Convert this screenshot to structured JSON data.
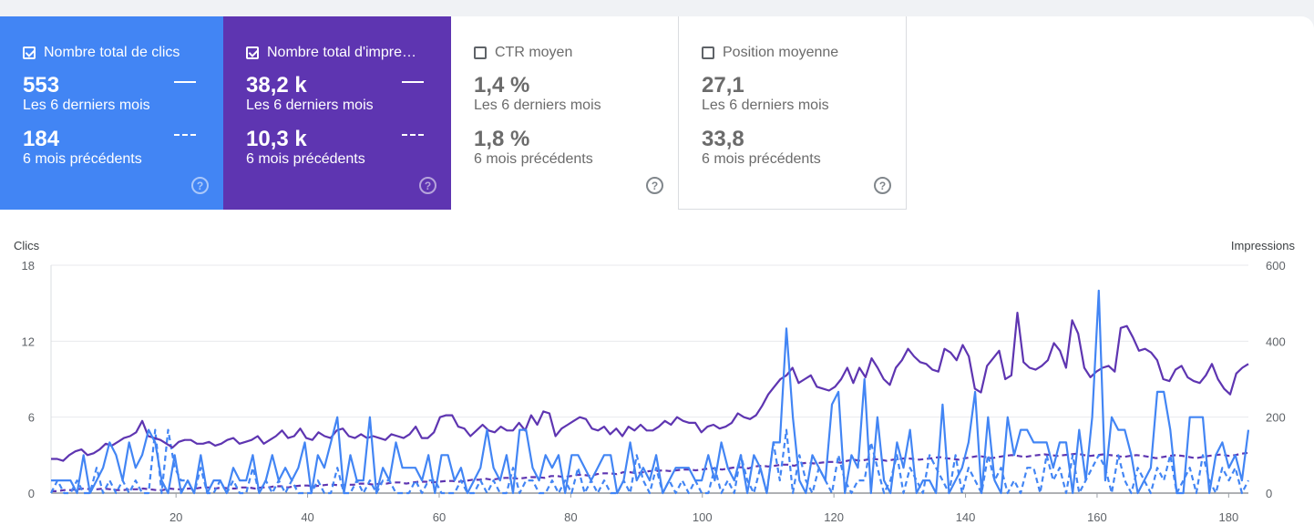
{
  "cards": [
    {
      "label": "Nombre total de clics",
      "checked": true,
      "current_value": "553",
      "current_label": "Les 6 derniers mois",
      "previous_value": "184",
      "previous_label": "6 mois précédents",
      "help_icon": "help-circle-icon"
    },
    {
      "label": "Nombre total d'impre…",
      "checked": true,
      "current_value": "38,2 k",
      "current_label": "Les 6 derniers mois",
      "previous_value": "10,3 k",
      "previous_label": "6 mois précédents",
      "help_icon": "help-circle-icon"
    },
    {
      "label": "CTR moyen",
      "checked": false,
      "current_value": "1,4 %",
      "current_label": "Les 6 derniers mois",
      "previous_value": "1,8 %",
      "previous_label": "6 mois précédents",
      "help_icon": "help-circle-icon"
    },
    {
      "label": "Position moyenne",
      "checked": false,
      "current_value": "27,1",
      "current_label": "Les 6 derniers mois",
      "previous_value": "33,8",
      "previous_label": "6 mois précédents",
      "help_icon": "help-circle-icon"
    }
  ],
  "colors": {
    "clicks": "#4285f4",
    "impressions": "#5e35b1",
    "grid": "#e8eaed"
  },
  "chart_data": {
    "type": "line",
    "ylabel_left": "Clics",
    "ylabel_right": "Impressions",
    "ylim_left": [
      0,
      18
    ],
    "ylim_right": [
      0,
      600
    ],
    "yticks_left": [
      0,
      6,
      12,
      18
    ],
    "yticks_right": [
      0,
      200,
      400,
      600
    ],
    "xlim": [
      1,
      183
    ],
    "xticks": [
      20,
      40,
      60,
      80,
      100,
      120,
      140,
      160,
      180
    ],
    "grid": true,
    "series": [
      {
        "name": "Nombre total de clics",
        "axis": "left",
        "style": "solid",
        "values": [
          1,
          1,
          1,
          1,
          0,
          3,
          0,
          1,
          2,
          4,
          3,
          1,
          4,
          2,
          3,
          5,
          4,
          1,
          0,
          3,
          0,
          1,
          0,
          3,
          0,
          1,
          1,
          0,
          2,
          1,
          1,
          3,
          0,
          1,
          3,
          1,
          2,
          1,
          2,
          4,
          0,
          3,
          2,
          4,
          6,
          0,
          3,
          1,
          1,
          6,
          0,
          2,
          1,
          4,
          2,
          2,
          2,
          1,
          3,
          0,
          3,
          3,
          1,
          2,
          0,
          1,
          2,
          5,
          2,
          1,
          3,
          0,
          5,
          5,
          2,
          1,
          3,
          2,
          3,
          0,
          3,
          3,
          2,
          1,
          2,
          3,
          3,
          0,
          1,
          4,
          1,
          2,
          1,
          3,
          0,
          1,
          2,
          2,
          2,
          1,
          1,
          3,
          1,
          4,
          2,
          1,
          3,
          0,
          3,
          2,
          0,
          4,
          4,
          13,
          6,
          1,
          0,
          3,
          2,
          1,
          7,
          8,
          0,
          3,
          2,
          9,
          0,
          6,
          1,
          0,
          4,
          2,
          5,
          0,
          1,
          1,
          0,
          7,
          0,
          1,
          2,
          4,
          8,
          0,
          6,
          1,
          0,
          6,
          3,
          5,
          5,
          4,
          4,
          4,
          2,
          4,
          4,
          0,
          5,
          1,
          6,
          16,
          1,
          6,
          5,
          5,
          3,
          0,
          1,
          2,
          8,
          8,
          5,
          0,
          0,
          6,
          6,
          6,
          0,
          3,
          4,
          2,
          3,
          1,
          5
        ]
      },
      {
        "name": "Nombre total d'impressions",
        "axis": "right",
        "style": "solid",
        "values": [
          90,
          90,
          85,
          100,
          110,
          115,
          100,
          105,
          115,
          130,
          125,
          135,
          145,
          150,
          160,
          190,
          150,
          145,
          140,
          130,
          120,
          135,
          140,
          140,
          130,
          130,
          135,
          125,
          130,
          140,
          145,
          130,
          135,
          140,
          150,
          130,
          140,
          150,
          165,
          145,
          150,
          170,
          145,
          140,
          160,
          150,
          145,
          165,
          170,
          150,
          145,
          155,
          145,
          150,
          145,
          140,
          155,
          150,
          145,
          155,
          175,
          145,
          145,
          160,
          200,
          205,
          205,
          175,
          170,
          150,
          165,
          180,
          165,
          160,
          175,
          165,
          165,
          185,
          165,
          205,
          180,
          215,
          210,
          150,
          170,
          180,
          190,
          200,
          195,
          170,
          165,
          175,
          155,
          170,
          150,
          175,
          165,
          180,
          165,
          165,
          175,
          190,
          180,
          200,
          190,
          185,
          185,
          160,
          175,
          180,
          170,
          175,
          185,
          210,
          200,
          195,
          205,
          230,
          260,
          280,
          300,
          310,
          330,
          290,
          300,
          310,
          280,
          275,
          270,
          280,
          300,
          330,
          290,
          330,
          305,
          355,
          330,
          300,
          285,
          330,
          350,
          380,
          360,
          345,
          340,
          325,
          320,
          380,
          370,
          350,
          390,
          360,
          275,
          265,
          335,
          355,
          375,
          300,
          310,
          475,
          345,
          330,
          325,
          335,
          350,
          395,
          375,
          330,
          455,
          420,
          330,
          305,
          320,
          330,
          335,
          320,
          435,
          440,
          410,
          375,
          380,
          370,
          350,
          300,
          295,
          325,
          335,
          305,
          295,
          290,
          310,
          340,
          300,
          275,
          260,
          315,
          330,
          340
        ]
      },
      {
        "name": "Clics (6 mois précédents)",
        "axis": "left",
        "style": "dashed",
        "values": [
          0,
          1,
          0,
          0,
          1,
          0,
          0,
          2,
          0,
          1,
          0,
          1,
          0,
          1,
          0,
          0,
          5,
          0,
          5,
          2,
          1,
          1,
          0,
          2,
          0,
          0,
          1,
          0,
          1,
          0,
          0,
          2,
          0,
          1,
          0,
          1,
          0,
          1,
          0,
          0,
          0,
          1,
          0,
          0,
          2,
          0,
          0,
          1,
          0,
          1,
          0,
          1,
          1,
          0,
          0,
          0,
          1,
          0,
          1,
          1,
          0,
          0,
          0,
          1,
          0,
          0,
          1,
          0,
          1,
          0,
          0,
          2,
          0,
          1,
          1,
          0,
          0,
          1,
          0,
          1,
          0,
          2,
          0,
          1,
          0,
          1,
          0,
          0,
          1,
          0,
          3,
          1,
          0,
          2,
          0,
          1,
          0,
          1,
          0,
          1,
          0,
          0,
          2,
          0,
          1,
          0,
          3,
          1,
          0,
          2,
          0,
          4,
          1,
          5,
          0,
          3,
          1,
          0,
          2,
          1,
          0,
          3,
          1,
          0,
          1,
          1,
          4,
          2,
          0,
          1,
          3,
          0,
          2,
          1,
          0,
          3,
          2,
          1,
          0,
          3,
          0,
          2,
          1,
          0,
          3,
          1,
          2,
          0,
          1,
          0,
          2,
          2,
          0,
          3,
          1,
          2,
          0,
          3,
          0,
          1,
          2,
          3,
          2,
          0,
          3,
          1,
          0,
          2,
          1,
          0,
          2,
          1,
          3,
          0,
          1,
          2,
          0,
          3,
          1,
          0,
          2,
          1,
          2,
          0,
          1
        ]
      },
      {
        "name": "Impressions (6 mois précédents)",
        "axis": "right",
        "style": "dashed",
        "values": [
          5,
          5,
          8,
          8,
          10,
          12,
          10,
          10,
          12,
          10,
          8,
          8,
          10,
          10,
          12,
          10,
          8,
          8,
          12,
          10,
          10,
          12,
          12,
          15,
          15,
          12,
          15,
          12,
          12,
          15,
          15,
          12,
          15,
          15,
          18,
          18,
          15,
          18,
          20,
          20,
          18,
          20,
          22,
          22,
          20,
          22,
          22,
          25,
          25,
          22,
          25,
          25,
          28,
          28,
          25,
          28,
          30,
          30,
          28,
          30,
          32,
          32,
          30,
          32,
          35,
          35,
          38,
          35,
          38,
          40,
          40,
          38,
          40,
          42,
          42,
          40,
          45,
          45,
          42,
          45,
          48,
          48,
          45,
          50,
          52,
          52,
          50,
          55,
          55,
          52,
          55,
          58,
          58,
          60,
          58,
          60,
          62,
          62,
          60,
          62,
          65,
          65,
          62,
          65,
          68,
          68,
          65,
          70,
          72,
          70,
          72,
          75,
          75,
          72,
          78,
          80,
          78,
          80,
          82,
          82,
          80,
          85,
          88,
          85,
          88,
          90,
          88,
          85,
          88,
          90,
          92,
          90,
          88,
          90,
          92,
          95,
          92,
          90,
          88,
          92,
          95,
          98,
          95,
          92,
          95,
          98,
          100,
          98,
          95,
          98,
          100,
          102,
          100,
          98,
          100,
          102,
          104,
          100,
          98,
          100,
          102,
          100,
          98,
          95,
          98,
          100,
          98,
          95,
          92,
          95,
          98,
          100,
          98,
          95,
          92,
          95,
          98,
          100,
          102,
          98,
          100,
          104,
          106
        ]
      }
    ]
  }
}
